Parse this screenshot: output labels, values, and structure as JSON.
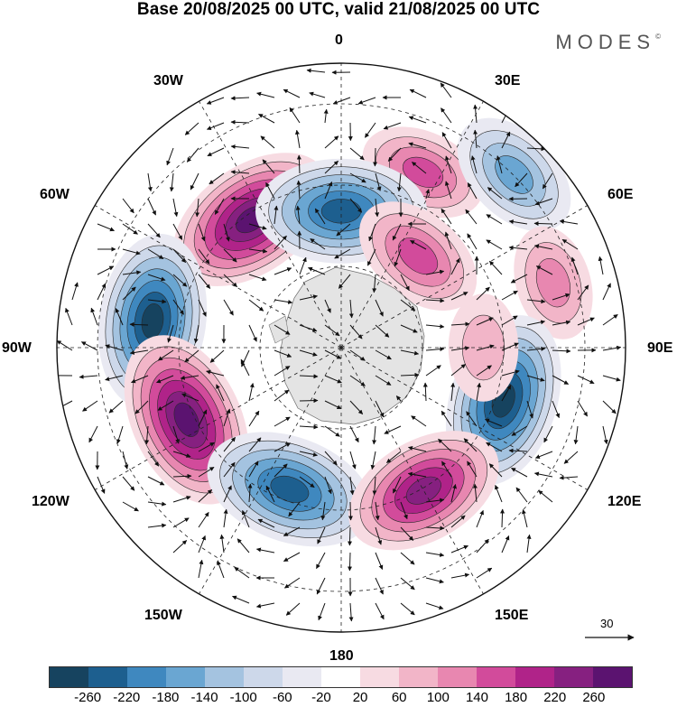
{
  "title": "Base 20/08/2025 00 UTC, valid 21/08/2025 00 UTC",
  "brand": "MODES",
  "brand_mark": "©",
  "longitude_labels": {
    "lon_0": "0",
    "lon_30e": "30E",
    "lon_60e": "60E",
    "lon_90e": "90E",
    "lon_120e": "120E",
    "lon_150e": "150E",
    "lon_180": "180",
    "lon_150w": "150W",
    "lon_120w": "120W",
    "lon_90w": "90W",
    "lon_60w": "60W",
    "lon_30w": "30W"
  },
  "reference_vector": {
    "label": "30"
  },
  "colorbar": {
    "tick_labels": [
      "-260",
      "-220",
      "-180",
      "-140",
      "-100",
      "-60",
      "-20",
      "20",
      "60",
      "100",
      "140",
      "180",
      "220",
      "260"
    ],
    "colors": [
      "#16435f",
      "#1d5f8f",
      "#3f88bf",
      "#6aa6d2",
      "#a4c3e0",
      "#cdd8ea",
      "#e9e9f2",
      "#ffffff",
      "#f7dbe2",
      "#f2b5c8",
      "#e887b0",
      "#d24b9b",
      "#b02389",
      "#862080",
      "#5b1370"
    ]
  },
  "anomaly_centers": [
    {
      "name": "ridge-nz-30e",
      "value": 140,
      "lon": 25,
      "colat": 0.68
    },
    {
      "name": "trough-60e",
      "value": -160,
      "lon": 45,
      "colat": 0.86
    },
    {
      "name": "ridge-60w",
      "value": 260,
      "lon": -35,
      "colat": 0.55
    },
    {
      "name": "trough-0",
      "value": -250,
      "lon": 0,
      "colat": 0.48
    },
    {
      "name": "ridge-0-inner",
      "value": 160,
      "lon": 40,
      "colat": 0.42
    },
    {
      "name": "ridge-75e",
      "value": 110,
      "lon": 73,
      "colat": 0.78
    },
    {
      "name": "trough-90w",
      "value": -260,
      "lon": -82,
      "colat": 0.67
    },
    {
      "name": "ridge-120w",
      "value": 270,
      "lon": -115,
      "colat": 0.6
    },
    {
      "name": "trough-160w",
      "value": -250,
      "lon": -160,
      "colat": 0.53
    },
    {
      "name": "trough-105e",
      "value": -260,
      "lon": 108,
      "colat": 0.6
    },
    {
      "name": "ridge-150e",
      "value": 230,
      "lon": 150,
      "colat": 0.58
    },
    {
      "name": "ridge-90e",
      "value": 90,
      "lon": 90,
      "colat": 0.5
    }
  ]
}
